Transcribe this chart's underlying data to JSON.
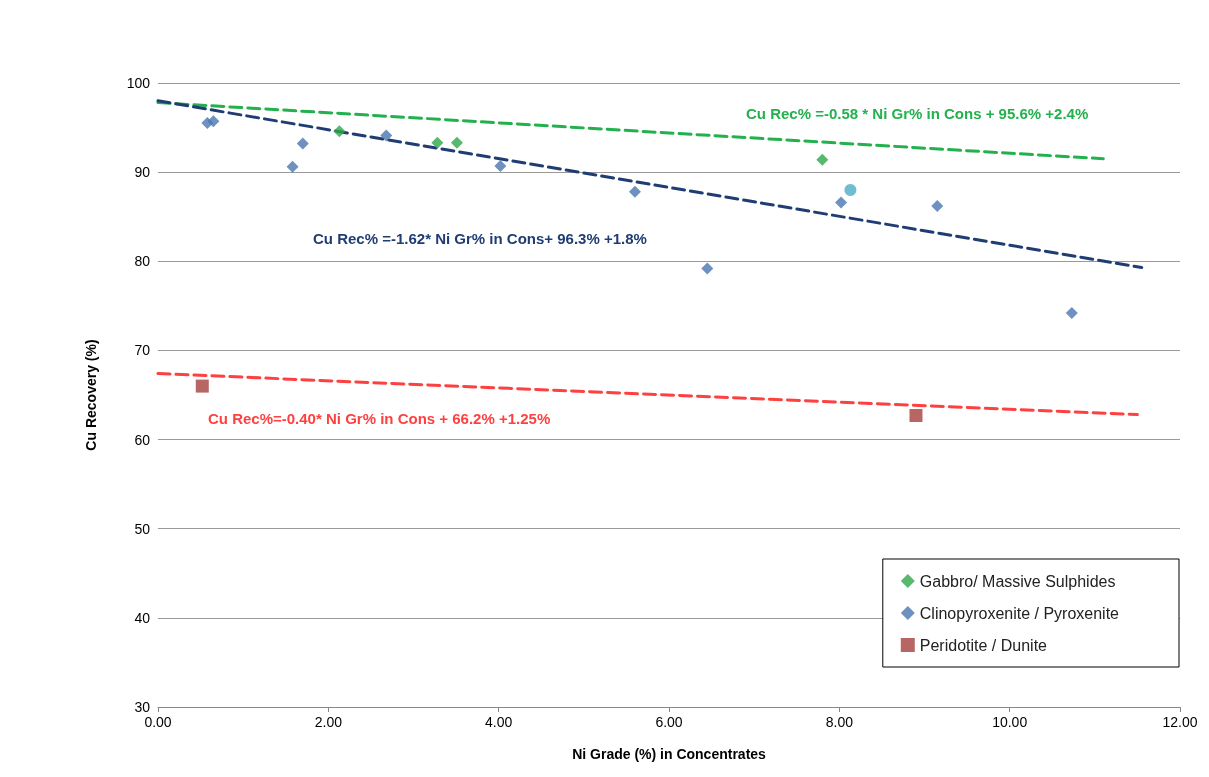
{
  "chart_data": {
    "type": "scatter",
    "xlabel": "Ni Grade (%) in Concentrates",
    "ylabel": "Cu Recovery (%)",
    "xlim": [
      0,
      12
    ],
    "xticks": [
      {
        "value": 0,
        "label": "0.00"
      },
      {
        "value": 2,
        "label": "2.00"
      },
      {
        "value": 4,
        "label": "4.00"
      },
      {
        "value": 6,
        "label": "6.00"
      },
      {
        "value": 8,
        "label": "8.00"
      },
      {
        "value": 10,
        "label": "10.00"
      },
      {
        "value": 12,
        "label": "12.00"
      }
    ],
    "ylim": [
      30,
      100
    ],
    "yticks": [
      30,
      40,
      50,
      60,
      70,
      80,
      90,
      100
    ],
    "grid": "y",
    "legend": "bottom right",
    "series": [
      {
        "name": "Gabbro/ Massive Sulphides",
        "color": "#2ea84a",
        "marker": "diamond",
        "x": [
          2.13,
          3.28,
          3.51,
          7.8
        ],
        "values": [
          94.6,
          93.3,
          93.3,
          91.4
        ]
      },
      {
        "name": "Clinopyroxenite / Pyroxenite",
        "color": "#4a76b0",
        "marker": "diamond",
        "x": [
          0.58,
          0.65,
          1.58,
          1.7,
          2.68,
          4.02,
          5.6,
          6.45,
          8.02,
          9.15,
          10.73
        ],
        "values": [
          95.5,
          95.7,
          90.6,
          93.2,
          94.1,
          90.7,
          87.8,
          79.2,
          86.6,
          86.2,
          74.2
        ]
      },
      {
        "name": "Peridotite / Dunite",
        "color": "#a5403c",
        "marker": "square",
        "x": [
          0.52,
          8.9
        ],
        "values": [
          66.0,
          62.7
        ]
      },
      {
        "color": "#4bacc6",
        "marker": "circle",
        "x": [
          8.13
        ],
        "values": [
          88.0
        ]
      },
      {
        "type": "line",
        "color": "#22b14c",
        "marker": "none",
        "line_style": "dashed",
        "x": [
          0,
          11.1
        ],
        "values": [
          97.8,
          91.5
        ]
      },
      {
        "type": "line",
        "color": "#1f3d73",
        "marker": "none",
        "line_style": "dashed",
        "x": [
          0,
          11.55
        ],
        "values": [
          98.0,
          79.3
        ]
      },
      {
        "type": "line",
        "color": "#ff4040",
        "marker": "none",
        "line_style": "dashed",
        "x": [
          0,
          11.5
        ],
        "values": [
          67.4,
          62.8
        ]
      }
    ],
    "annotations": [
      "Cu Rec% =-0.58 * Ni Gr% in Cons + 95.6% +2.4%",
      "Cu Rec% =-1.62* Ni Gr% in Cons+ 96.3% +1.8%",
      "Cu Rec%=-0.40* Ni Gr% in Cons + 66.2% +1.25%"
    ]
  }
}
